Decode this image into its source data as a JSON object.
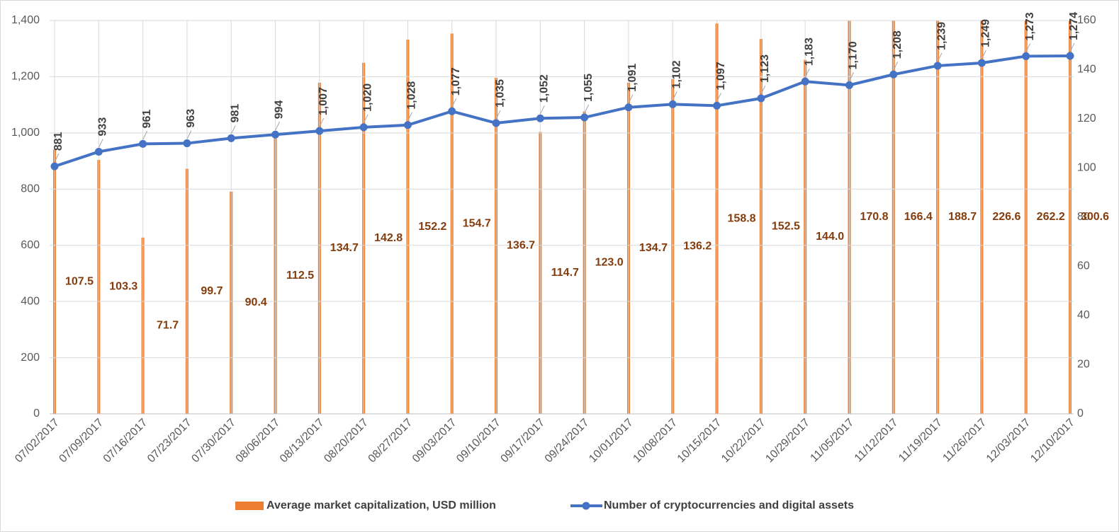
{
  "chart_data": {
    "type": "bar-line",
    "categories": [
      "07/02/2017",
      "07/09/2017",
      "07/16/2017",
      "07/23/2017",
      "07/30/2017",
      "08/06/2017",
      "08/13/2017",
      "08/20/2017",
      "08/27/2017",
      "09/03/2017",
      "09/10/2017",
      "09/17/2017",
      "09/24/2017",
      "10/01/2017",
      "10/08/2017",
      "10/15/2017",
      "10/22/2017",
      "10/29/2017",
      "11/05/2017",
      "11/12/2017",
      "11/19/2017",
      "11/26/2017",
      "12/03/2017",
      "12/10/2017"
    ],
    "series": [
      {
        "name": "Average market capitalization, USD million",
        "type": "bar",
        "axis": "y2",
        "color": "#ed7d31",
        "values": [
          107.5,
          103.3,
          71.7,
          99.7,
          90.4,
          112.5,
          134.7,
          142.8,
          152.2,
          154.7,
          136.7,
          114.7,
          123.0,
          134.7,
          136.2,
          158.8,
          152.5,
          144.0,
          170.8,
          166.4,
          188.7,
          226.6,
          262.2,
          300.6
        ],
        "value_labels": [
          "107.5",
          "103.3",
          "71.7",
          "99.7",
          "90.4",
          "112.5",
          "134.7",
          "142.8",
          "152.2",
          "154.7",
          "136.7",
          "114.7",
          "123.0",
          "134.7",
          "136.2",
          "158.8",
          "152.5",
          "144.0",
          "170.8",
          "166.4",
          "188.7",
          "226.6",
          "262.2",
          "300.6"
        ]
      },
      {
        "name": "Number of cryptocurrencies and digital assets",
        "type": "line",
        "color": "#4472c4",
        "values": [
          881,
          933,
          961,
          963,
          981,
          994,
          1007,
          1020,
          1028,
          1077,
          1035,
          1052,
          1055,
          1091,
          1102,
          1097,
          1123,
          1183,
          1170,
          1208,
          1239,
          1249,
          1273,
          1274
        ],
        "value_labels": [
          "881",
          "933",
          "961",
          "963",
          "981",
          "994",
          "1,007",
          "1,020",
          "1,028",
          "1,077",
          "1,035",
          "1,052",
          "1,055",
          "1,091",
          "1,102",
          "1,097",
          "1,123",
          "1,183",
          "1,170",
          "1,208",
          "1,239",
          "1,249",
          "1,273",
          "1,274"
        ]
      }
    ],
    "ylim": [
      0,
      1400
    ],
    "yticks": [
      0,
      200,
      400,
      600,
      800,
      {
        "value": 1000,
        "label": "1,000"
      },
      {
        "value": 1200,
        "label": "1,200"
      },
      {
        "value": 1400,
        "label": "1,400"
      }
    ],
    "y2lim": [
      0,
      160
    ],
    "y2ticks": [
      0,
      20,
      40,
      60,
      80,
      100,
      120,
      140,
      160
    ],
    "grid": true,
    "legend": "bottom"
  }
}
